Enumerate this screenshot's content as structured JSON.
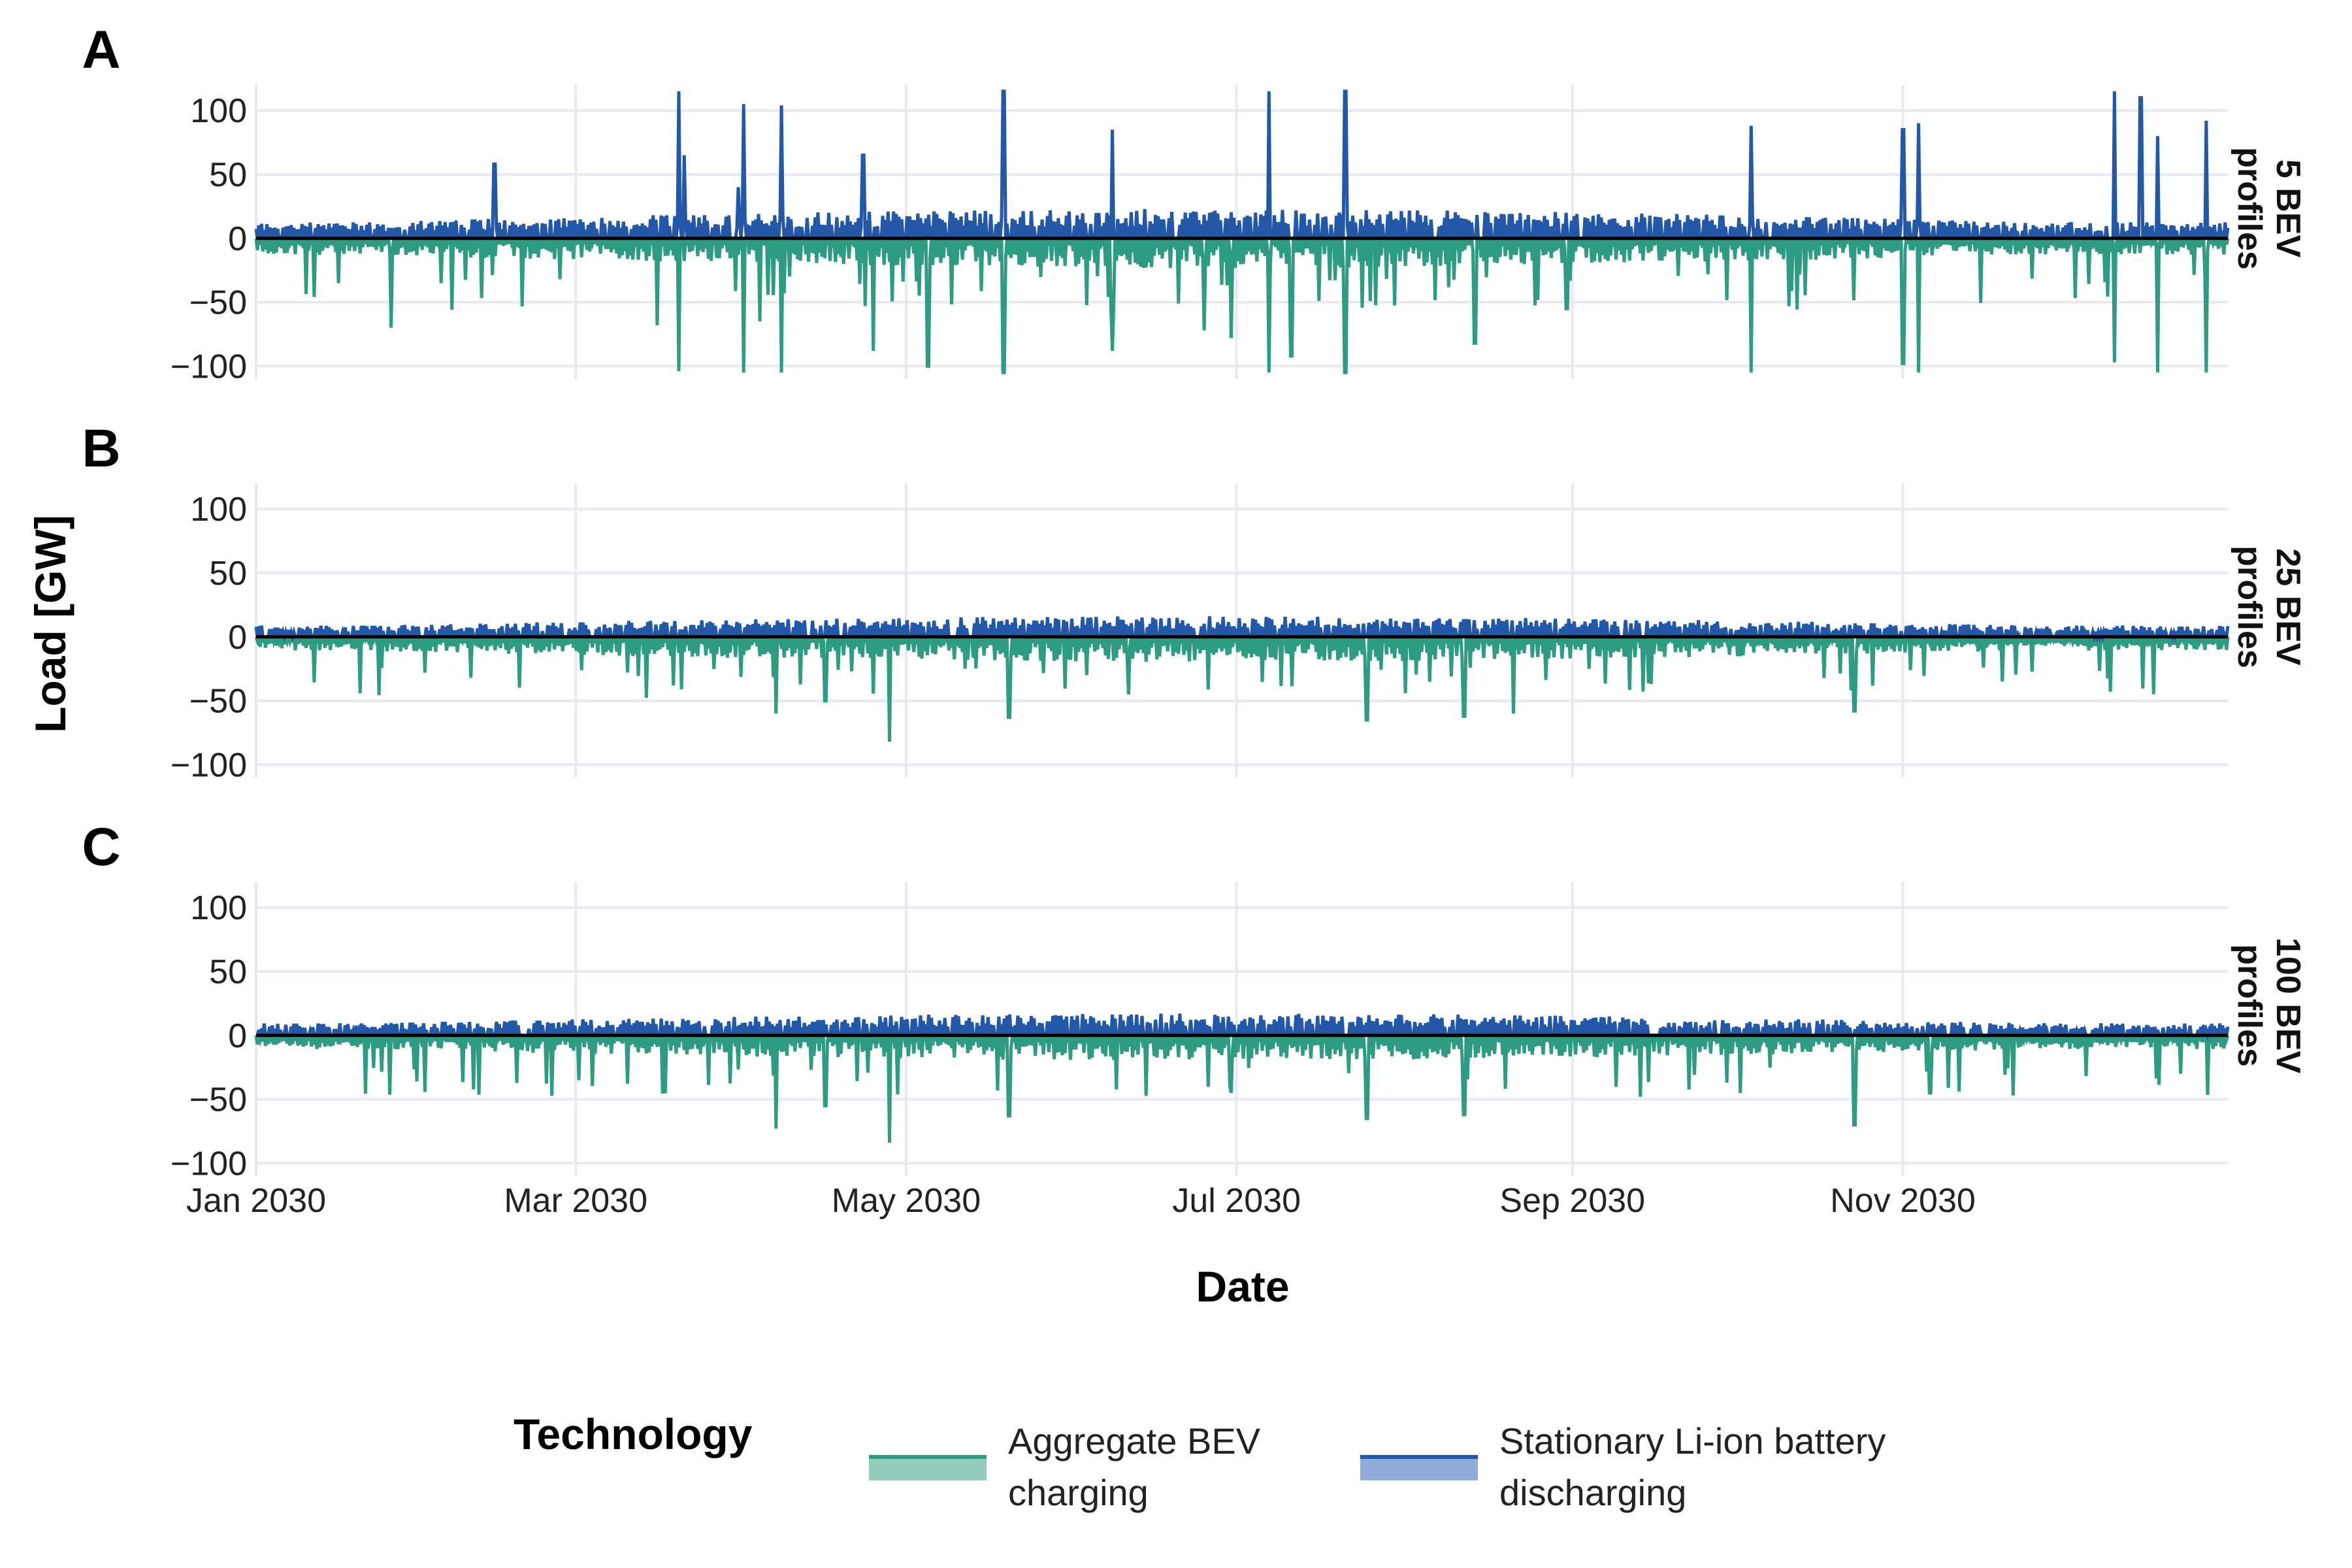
{
  "chart_data": {
    "type": "line",
    "xlabel": "Date",
    "ylabel": "Load [GW]",
    "x_range": [
      "2030-01-01",
      "2030-12-31"
    ],
    "ylim": [
      -110,
      120
    ],
    "y_ticks": [
      100,
      50,
      0,
      -50,
      -100
    ],
    "y_tick_labels": [
      "100",
      "50",
      "0",
      "−50",
      "−100"
    ],
    "x_ticks": [
      "2030-01-01",
      "2030-03-01",
      "2030-05-01",
      "2030-07-01",
      "2030-09-01",
      "2030-11-01"
    ],
    "x_tick_labels": [
      "Jan 2030",
      "Mar 2030",
      "May 2030",
      "Jul 2030",
      "Sep 2030",
      "Nov 2030"
    ],
    "grid": true,
    "legend": {
      "title": "Technology",
      "position": "bottom",
      "items": [
        {
          "label_line1": "Aggregate BEV",
          "label_line2": "charging",
          "color": "#2e9c82",
          "fill": "#93cbbd"
        },
        {
          "label_line1": "Stationary Li-ion battery",
          "label_line2": "discharging",
          "color": "#2358a8",
          "fill": "#90acdb"
        }
      ]
    },
    "series_colors": {
      "charging": "#2e9c82",
      "discharging": "#2358a8",
      "zero_line": "#000000"
    },
    "panels": [
      {
        "letter": "A",
        "strip_line1": "5 BEV",
        "strip_line2": "profiles",
        "discharging_typical": 20,
        "discharging_max": 35,
        "charging_typical": -18,
        "charging_min": -35,
        "discharging_peaks": [
          {
            "date": "2030-03-20",
            "value": 115
          },
          {
            "date": "2030-03-21",
            "value": 65
          },
          {
            "date": "2030-02-14",
            "value": 58
          },
          {
            "date": "2030-04-01",
            "value": 105
          },
          {
            "date": "2030-04-08",
            "value": 104
          },
          {
            "date": "2030-05-19",
            "value": 115
          },
          {
            "date": "2030-06-08",
            "value": 85
          },
          {
            "date": "2030-07-07",
            "value": 115
          },
          {
            "date": "2030-07-21",
            "value": 115
          },
          {
            "date": "2030-10-04",
            "value": 88
          },
          {
            "date": "2030-11-01",
            "value": 85
          },
          {
            "date": "2030-11-04",
            "value": 90
          },
          {
            "date": "2030-12-10",
            "value": 115
          },
          {
            "date": "2030-12-15",
            "value": 110
          },
          {
            "date": "2030-12-18",
            "value": 80
          },
          {
            "date": "2030-12-27",
            "value": 92
          },
          {
            "date": "2030-04-23",
            "value": 65
          },
          {
            "date": "2030-03-31",
            "value": 40
          }
        ],
        "charging_peaks": [
          {
            "date": "2030-03-20",
            "value": -104
          },
          {
            "date": "2030-04-01",
            "value": -105
          },
          {
            "date": "2030-04-08",
            "value": -105
          },
          {
            "date": "2030-05-19",
            "value": -105
          },
          {
            "date": "2030-07-07",
            "value": -105
          },
          {
            "date": "2030-07-21",
            "value": -105
          },
          {
            "date": "2030-10-04",
            "value": -105
          },
          {
            "date": "2030-11-01",
            "value": -98
          },
          {
            "date": "2030-11-04",
            "value": -105
          },
          {
            "date": "2030-12-10",
            "value": -97
          },
          {
            "date": "2030-12-18",
            "value": -105
          },
          {
            "date": "2030-12-27",
            "value": -105
          },
          {
            "date": "2030-01-26",
            "value": -70
          },
          {
            "date": "2030-03-16",
            "value": -68
          },
          {
            "date": "2030-04-04",
            "value": -65
          },
          {
            "date": "2030-04-25",
            "value": -88
          },
          {
            "date": "2030-05-05",
            "value": -100
          },
          {
            "date": "2030-06-08",
            "value": -88
          },
          {
            "date": "2030-06-25",
            "value": -72
          },
          {
            "date": "2030-06-30",
            "value": -78
          },
          {
            "date": "2030-07-11",
            "value": -92
          },
          {
            "date": "2030-08-14",
            "value": -82
          },
          {
            "date": "2030-08-31",
            "value": -55
          }
        ]
      },
      {
        "letter": "B",
        "strip_line1": "25 BEV",
        "strip_line2": "profiles",
        "discharging_typical": 14,
        "discharging_max": 18,
        "charging_typical": -15,
        "charging_min": -30,
        "discharging_peaks": [],
        "charging_peaks": [
          {
            "date": "2030-04-07",
            "value": -60
          },
          {
            "date": "2030-04-28",
            "value": -82
          },
          {
            "date": "2030-05-20",
            "value": -63
          },
          {
            "date": "2030-07-25",
            "value": -65
          },
          {
            "date": "2030-08-12",
            "value": -62
          },
          {
            "date": "2030-08-21",
            "value": -60
          },
          {
            "date": "2030-10-23",
            "value": -58
          },
          {
            "date": "2030-04-16",
            "value": -50
          },
          {
            "date": "2030-06-11",
            "value": -45
          }
        ]
      },
      {
        "letter": "C",
        "strip_line1": "100 BEV",
        "strip_line2": "profiles",
        "discharging_typical": 15,
        "discharging_max": 20,
        "charging_typical": -15,
        "charging_min": -30,
        "discharging_peaks": [],
        "charging_peaks": [
          {
            "date": "2030-04-07",
            "value": -73
          },
          {
            "date": "2030-04-28",
            "value": -84
          },
          {
            "date": "2030-05-20",
            "value": -63
          },
          {
            "date": "2030-07-25",
            "value": -65
          },
          {
            "date": "2030-08-12",
            "value": -62
          },
          {
            "date": "2030-10-23",
            "value": -70
          },
          {
            "date": "2030-04-16",
            "value": -55
          },
          {
            "date": "2030-11-06",
            "value": -45
          },
          {
            "date": "2030-06-30",
            "value": -45
          }
        ]
      }
    ]
  }
}
